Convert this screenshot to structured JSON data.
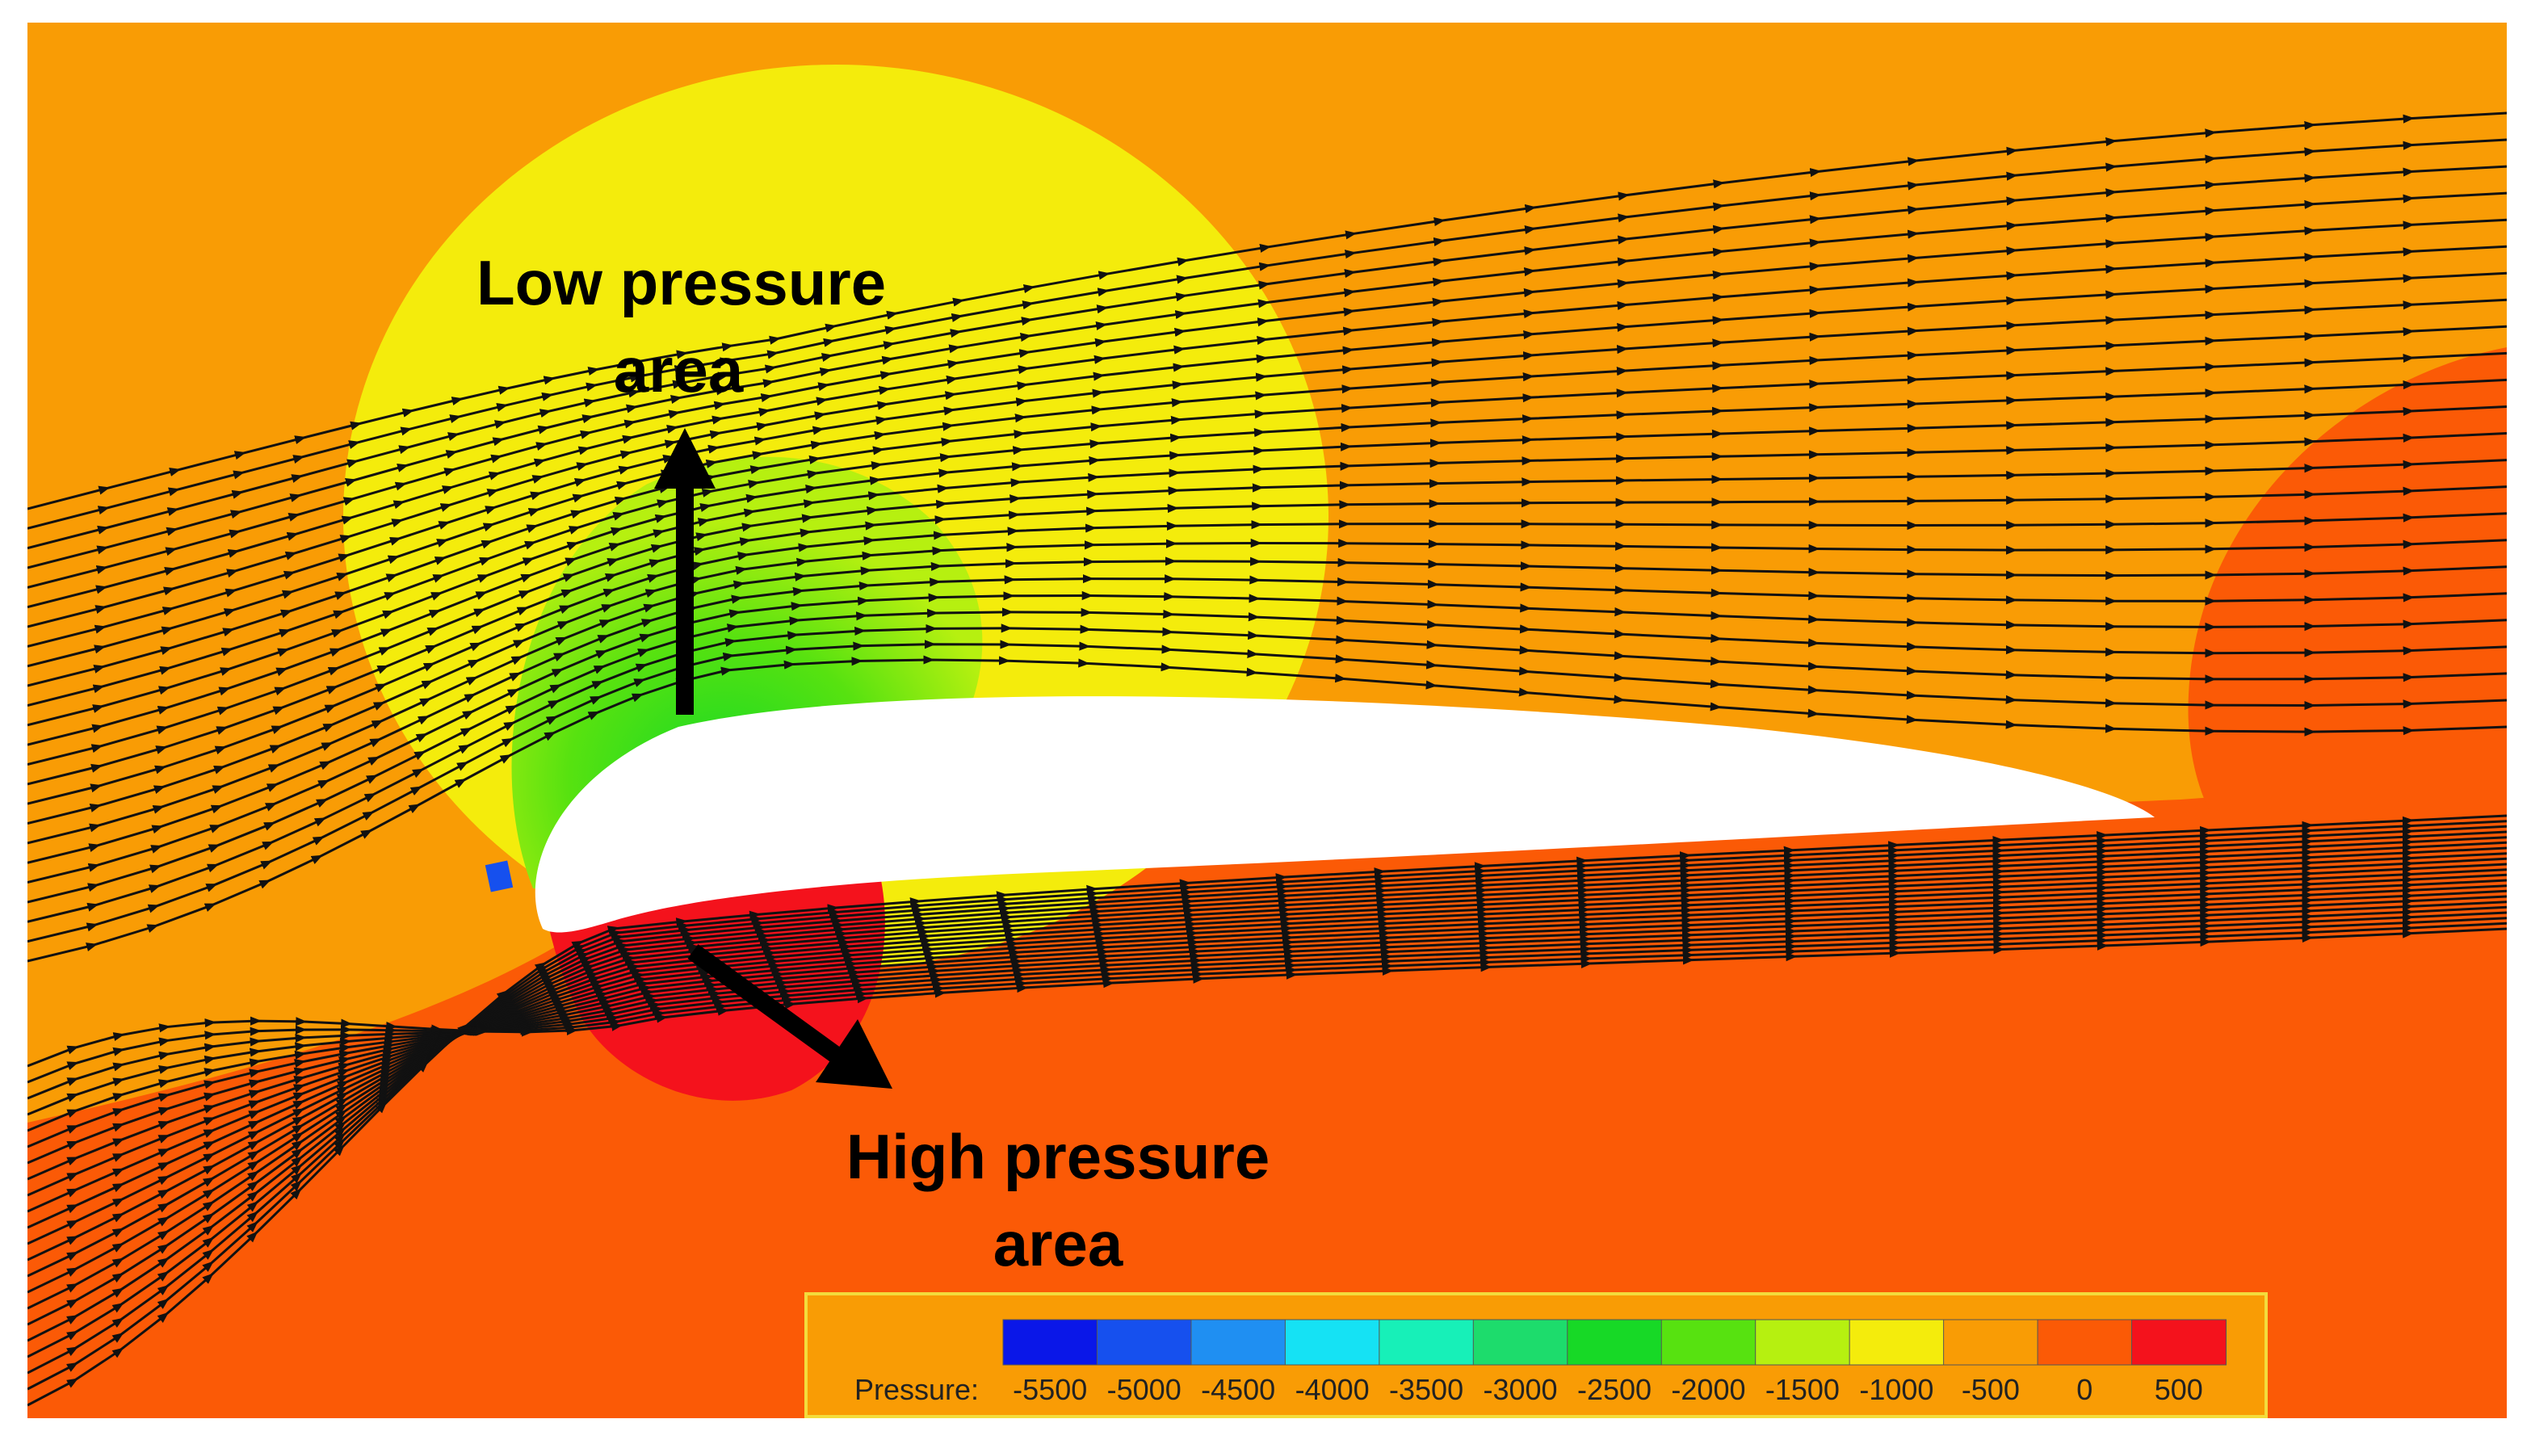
{
  "annotations": {
    "low_pressure": [
      "Low pressure",
      "area"
    ],
    "high_pressure": [
      "High pressure",
      "area"
    ]
  },
  "legend": {
    "title": "Pressure:",
    "ticks": [
      "-5500",
      "-5000",
      "-4500",
      "-4000",
      "-3500",
      "-3000",
      "-2500",
      "-2000",
      "-1500",
      "-1000",
      "-500",
      "0",
      "500"
    ],
    "colors": [
      "#0a17e8",
      "#1650ee",
      "#1f8ff2",
      "#15e2f4",
      "#17f0b8",
      "#1ddc6c",
      "#17d926",
      "#57e210",
      "#b6f010",
      "#f4ec0c",
      "#f99c05",
      "#fb5a06",
      "#f4121c"
    ]
  },
  "colors": {
    "background_field": "#f99c05",
    "lower_field": "#fb5a06",
    "low_zone": "#f4ec0c",
    "suction_core": "#57e210",
    "stagnation_zone": "#f4121c",
    "airfoil": "#ffffff",
    "streamline": "#111111"
  }
}
